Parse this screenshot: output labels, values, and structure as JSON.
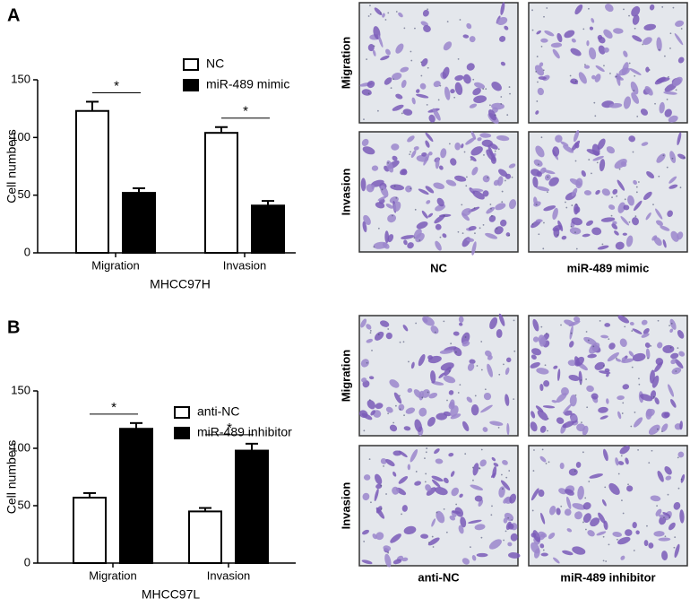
{
  "chart_data": [
    {
      "type": "bar",
      "panel": "A",
      "xlabel": "MHCC97H",
      "ylabel": "Cell numbers",
      "categories": [
        "Migration",
        "Invasion"
      ],
      "series": [
        {
          "name": "NC",
          "color": "#ffffff",
          "values": [
            123,
            104
          ],
          "errors": [
            8,
            5
          ]
        },
        {
          "name": "miR-489 mimic",
          "color": "#000000",
          "values": [
            52,
            41
          ],
          "errors": [
            4,
            4
          ]
        }
      ],
      "annotations": [
        "*",
        "*"
      ],
      "ylim": [
        0,
        150
      ],
      "yticks": [
        0,
        50,
        100,
        150
      ],
      "micrographs": {
        "rows": [
          "Migration",
          "Invasion"
        ],
        "columns": [
          "NC",
          "miR-489 mimic"
        ]
      }
    },
    {
      "type": "bar",
      "panel": "B",
      "xlabel": "MHCC97L",
      "ylabel": "Cell numbers",
      "categories": [
        "Migration",
        "Invasion"
      ],
      "series": [
        {
          "name": "anti-NC",
          "color": "#ffffff",
          "values": [
            57,
            45
          ],
          "errors": [
            4,
            3
          ]
        },
        {
          "name": "miR-489 inhibitor",
          "color": "#000000",
          "values": [
            117,
            98
          ],
          "errors": [
            5,
            6
          ]
        }
      ],
      "annotations": [
        "*",
        "*"
      ],
      "ylim": [
        0,
        150
      ],
      "yticks": [
        0,
        50,
        100,
        150
      ],
      "micrographs": {
        "rows": [
          "Migration",
          "Invasion"
        ],
        "columns": [
          "anti-NC",
          "miR-489 inhibitor"
        ]
      }
    }
  ]
}
